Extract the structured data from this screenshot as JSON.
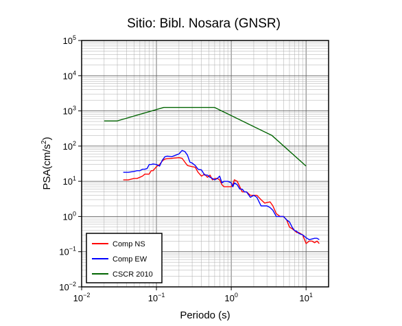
{
  "chart_data": {
    "type": "line",
    "title": "Sitio: Bibl. Nosara (GNSR)",
    "xlabel": "Periodo (s)",
    "ylabel": "PSA(cm/s2)",
    "ylabel_base": "PSA(cm/s",
    "ylabel_sup": "2",
    "ylabel_close": ")",
    "xscale": "log",
    "yscale": "log",
    "xlim": [
      0.01,
      20
    ],
    "ylim": [
      0.01,
      100000
    ],
    "grid": true,
    "legend_position": "bottom-left",
    "x_ticks": [
      {
        "base": "10",
        "exp": "−2",
        "value": 0.01
      },
      {
        "base": "10",
        "exp": "−1",
        "value": 0.1
      },
      {
        "base": "10",
        "exp": "0",
        "value": 1
      },
      {
        "base": "10",
        "exp": "1",
        "value": 10
      }
    ],
    "y_ticks": [
      {
        "base": "10",
        "exp": "−2",
        "value": 0.01
      },
      {
        "base": "10",
        "exp": "−1",
        "value": 0.1
      },
      {
        "base": "10",
        "exp": "0",
        "value": 1
      },
      {
        "base": "10",
        "exp": "1",
        "value": 10
      },
      {
        "base": "10",
        "exp": "2",
        "value": 100
      },
      {
        "base": "10",
        "exp": "3",
        "value": 1000
      },
      {
        "base": "10",
        "exp": "4",
        "value": 10000
      },
      {
        "base": "10",
        "exp": "5",
        "value": 100000
      }
    ],
    "series": [
      {
        "name": "Comp NS",
        "color": "#ff0000",
        "x": [
          0.036,
          0.042,
          0.05,
          0.055,
          0.06,
          0.065,
          0.07,
          0.075,
          0.08,
          0.085,
          0.09,
          0.1,
          0.11,
          0.12,
          0.13,
          0.14,
          0.16,
          0.18,
          0.2,
          0.22,
          0.24,
          0.26,
          0.28,
          0.3,
          0.33,
          0.36,
          0.4,
          0.44,
          0.48,
          0.52,
          0.56,
          0.6,
          0.65,
          0.7,
          0.75,
          0.8,
          0.9,
          1.0,
          1.05,
          1.1,
          1.2,
          1.3,
          1.4,
          1.5,
          1.6,
          1.8,
          2.0,
          2.2,
          2.5,
          2.8,
          3.0,
          3.3,
          3.6,
          4.0,
          4.5,
          5.0,
          5.5,
          6.0,
          6.5,
          7.0,
          7.5,
          8.0,
          9.0,
          10.0,
          11.0,
          12.0,
          13.0,
          14.0,
          15.0
        ],
        "values": [
          11,
          11,
          12,
          12,
          13,
          14,
          16,
          16,
          16,
          20,
          20,
          26,
          30,
          38,
          43,
          44,
          45,
          46,
          47,
          45,
          35,
          28,
          27,
          26,
          25,
          18,
          14,
          16,
          13,
          15,
          11,
          12,
          12,
          11,
          8,
          7,
          7,
          7,
          8,
          11,
          10,
          7,
          5,
          5,
          5,
          4,
          4,
          4,
          3,
          2.4,
          2.5,
          2.6,
          2,
          1.2,
          1,
          1,
          0.8,
          0.5,
          0.45,
          0.4,
          0.35,
          0.35,
          0.3,
          0.17,
          0.2,
          0.2,
          0.18,
          0.2,
          0.17
        ]
      },
      {
        "name": "Comp EW",
        "color": "#0000ff",
        "x": [
          0.036,
          0.042,
          0.05,
          0.055,
          0.06,
          0.065,
          0.07,
          0.075,
          0.08,
          0.085,
          0.09,
          0.1,
          0.11,
          0.12,
          0.13,
          0.14,
          0.16,
          0.18,
          0.2,
          0.22,
          0.24,
          0.26,
          0.28,
          0.3,
          0.33,
          0.36,
          0.4,
          0.44,
          0.48,
          0.52,
          0.56,
          0.6,
          0.65,
          0.7,
          0.75,
          0.8,
          0.9,
          1.0,
          1.05,
          1.1,
          1.2,
          1.3,
          1.4,
          1.5,
          1.6,
          1.8,
          2.0,
          2.2,
          2.5,
          2.8,
          3.0,
          3.3,
          3.6,
          4.0,
          4.5,
          5.0,
          5.5,
          6.0,
          6.5,
          7.0,
          7.5,
          8.0,
          9.0,
          10.0,
          11.0,
          12.0,
          13.0,
          14.0,
          15.0
        ],
        "values": [
          18,
          18,
          19,
          20,
          20,
          22,
          22,
          23,
          30,
          30,
          31,
          30,
          27,
          40,
          50,
          52,
          50,
          55,
          60,
          75,
          70,
          55,
          35,
          33,
          28,
          22,
          21,
          15,
          15,
          13,
          12,
          11,
          12,
          14,
          9,
          10,
          10,
          9,
          7,
          9,
          8,
          6,
          6,
          5,
          5,
          3.5,
          4,
          3.5,
          2,
          2,
          2,
          1.8,
          1.5,
          1,
          1,
          1,
          0.8,
          0.7,
          0.5,
          0.4,
          0.38,
          0.33,
          0.3,
          0.25,
          0.22,
          0.23,
          0.24,
          0.24,
          0.22
        ]
      },
      {
        "name": "CSCR 2010",
        "color": "#006400",
        "x": [
          0.02,
          0.03,
          0.125,
          0.6,
          3.5,
          10
        ],
        "values": [
          520,
          520,
          1250,
          1250,
          200,
          27
        ]
      }
    ]
  }
}
